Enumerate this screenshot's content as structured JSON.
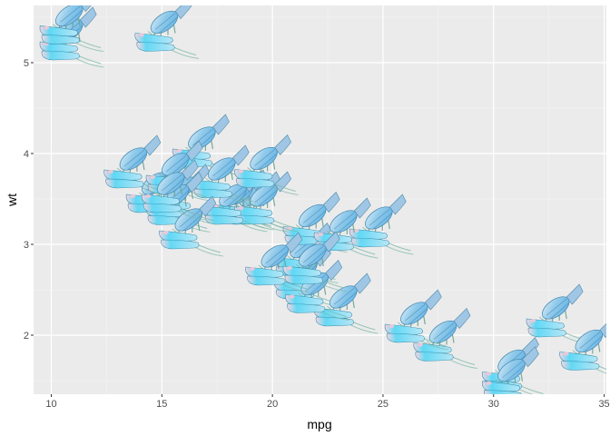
{
  "chart_data": {
    "type": "scatter",
    "marker": "lobster-image",
    "xlabel": "mpg",
    "ylabel": "wt",
    "xlim": [
      9.2,
      35.1
    ],
    "ylim": [
      1.35,
      5.63
    ],
    "x_ticks": [
      10,
      15,
      20,
      25,
      30,
      35
    ],
    "y_ticks": [
      2,
      3,
      4,
      5
    ],
    "grid": true,
    "points": [
      {
        "x": 21.0,
        "y": 2.62
      },
      {
        "x": 21.0,
        "y": 2.875
      },
      {
        "x": 22.8,
        "y": 2.32
      },
      {
        "x": 21.4,
        "y": 3.215
      },
      {
        "x": 18.7,
        "y": 3.44
      },
      {
        "x": 18.1,
        "y": 3.46
      },
      {
        "x": 14.3,
        "y": 3.57
      },
      {
        "x": 24.4,
        "y": 3.19
      },
      {
        "x": 22.8,
        "y": 3.15
      },
      {
        "x": 19.2,
        "y": 3.44
      },
      {
        "x": 17.8,
        "y": 3.44
      },
      {
        "x": 16.4,
        "y": 4.07
      },
      {
        "x": 17.3,
        "y": 3.73
      },
      {
        "x": 15.2,
        "y": 3.78
      },
      {
        "x": 10.4,
        "y": 5.25
      },
      {
        "x": 10.4,
        "y": 5.424
      },
      {
        "x": 14.7,
        "y": 5.345
      },
      {
        "x": 32.4,
        "y": 2.2
      },
      {
        "x": 30.4,
        "y": 1.615
      },
      {
        "x": 33.9,
        "y": 1.835
      },
      {
        "x": 21.5,
        "y": 2.465
      },
      {
        "x": 15.5,
        "y": 3.52
      },
      {
        "x": 15.2,
        "y": 3.435
      },
      {
        "x": 13.3,
        "y": 3.84
      },
      {
        "x": 19.2,
        "y": 3.845
      },
      {
        "x": 27.3,
        "y": 1.935
      },
      {
        "x": 26.0,
        "y": 2.14
      },
      {
        "x": 30.4,
        "y": 1.513
      },
      {
        "x": 15.8,
        "y": 3.17
      },
      {
        "x": 19.7,
        "y": 2.77
      },
      {
        "x": 15.0,
        "y": 3.57
      },
      {
        "x": 21.4,
        "y": 2.78
      }
    ]
  }
}
